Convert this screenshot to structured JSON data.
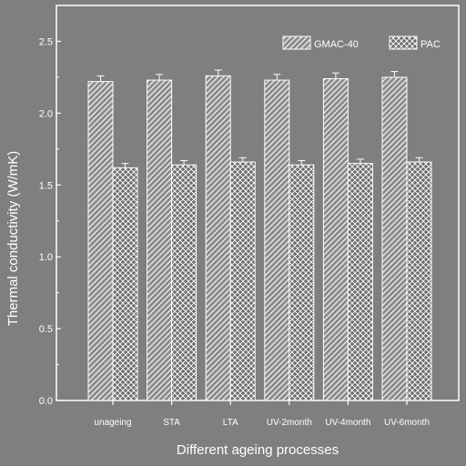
{
  "chart_data": {
    "type": "bar",
    "xlabel": "Different ageing processes",
    "ylabel": "Thermal conductivity (W/mK)",
    "categories": [
      "unageing",
      "STA",
      "LTA",
      "UV-2month",
      "UV-4month",
      "UV-6month"
    ],
    "series": [
      {
        "name": "GMAC-40",
        "values": [
          2.22,
          2.23,
          2.26,
          2.23,
          2.24,
          2.25
        ],
        "errors": [
          0.04,
          0.04,
          0.04,
          0.04,
          0.04,
          0.04
        ],
        "pattern": "diagonal-hatch"
      },
      {
        "name": "PAC",
        "values": [
          1.62,
          1.64,
          1.66,
          1.64,
          1.65,
          1.66
        ],
        "errors": [
          0.03,
          0.03,
          0.03,
          0.03,
          0.03,
          0.03
        ],
        "pattern": "cross-hatch"
      }
    ],
    "ylim": [
      0,
      2.75
    ],
    "yticks": [
      "0.0",
      "0.5",
      "1.0",
      "1.5",
      "2.0",
      "2.5"
    ],
    "legend_position": "top-right",
    "grid": false,
    "colors": {
      "background": "#7f7f7f",
      "foreground": "#ffffff"
    }
  }
}
